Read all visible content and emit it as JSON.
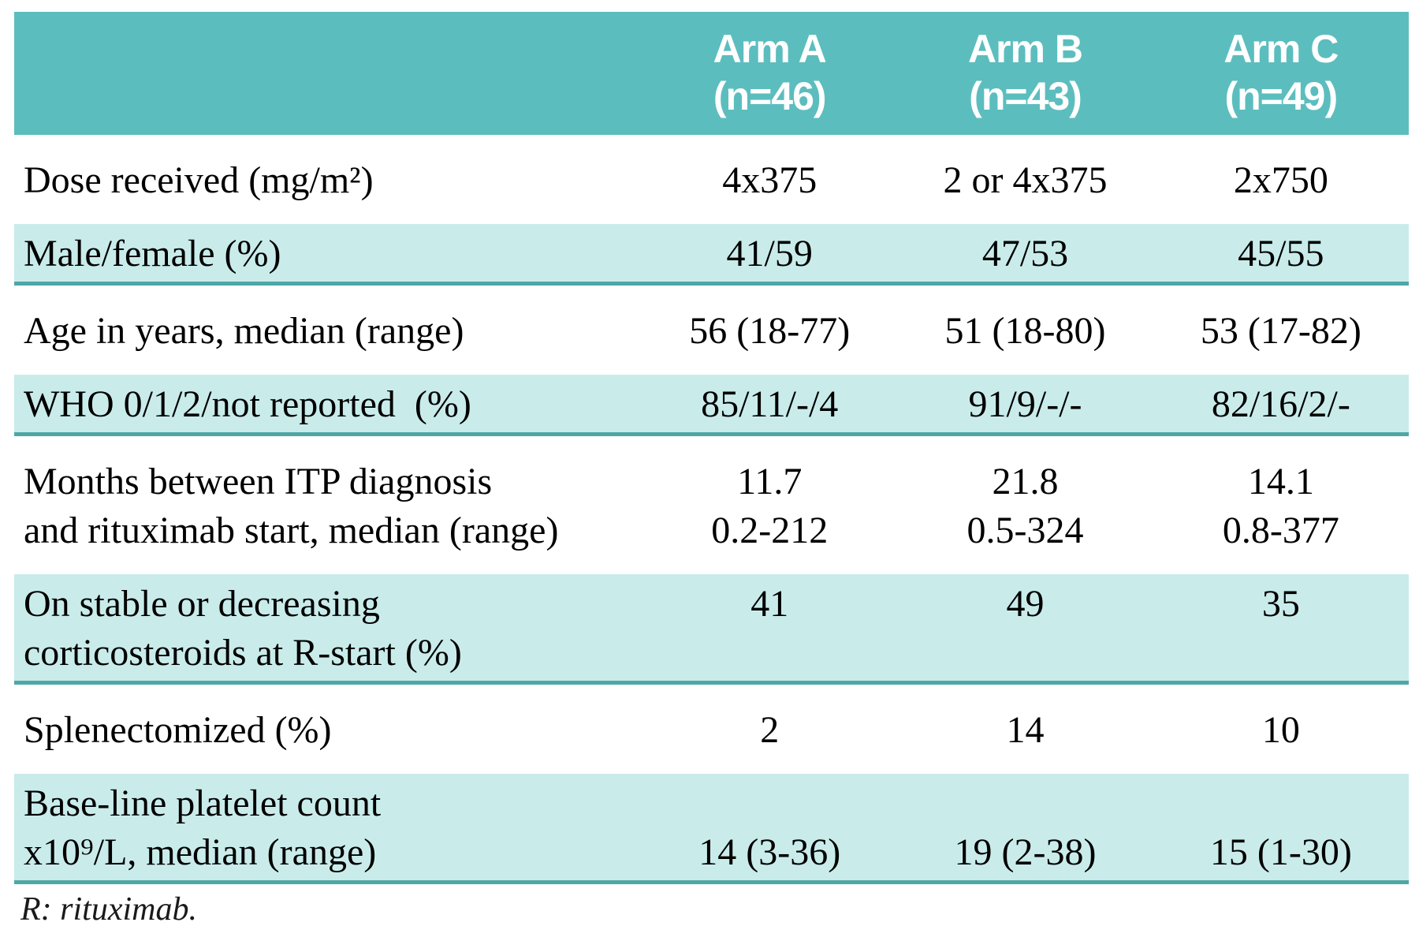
{
  "colors": {
    "header_bg": "#5cbdbe",
    "header_text": "#ffffff",
    "shaded_row_bg": "#c9eceb",
    "separator": "#4fa7a5",
    "body_text": "#000000"
  },
  "table": {
    "header": {
      "label_col": "",
      "arm_a": "Arm A\n(n=46)",
      "arm_b": "Arm B\n(n=43)",
      "arm_c": "Arm C\n(n=49)"
    },
    "rows": [
      {
        "label": "Dose received (mg/m²)",
        "arm_a": "4x375",
        "arm_b": "2 or 4x375",
        "arm_c": "2x750"
      },
      {
        "label": "Male/female (%)",
        "arm_a": "41/59",
        "arm_b": "47/53",
        "arm_c": "45/55"
      },
      {
        "label": "Age in years, median (range)",
        "arm_a": "56 (18-77)",
        "arm_b": "51 (18-80)",
        "arm_c": "53 (17-82)"
      },
      {
        "label": "WHO 0/1/2/not reported  (%)",
        "arm_a": "85/11/-/4",
        "arm_b": "91/9/-/-",
        "arm_c": "82/16/2/-"
      },
      {
        "label": "Months between ITP diagnosis\nand rituximab start, median (range)",
        "arm_a": "11.7\n0.2-212",
        "arm_b": "21.8\n0.5-324",
        "arm_c": "14.1\n0.8-377"
      },
      {
        "label": "On stable or decreasing\ncorticosteroids at R-start (%)",
        "arm_a": "41",
        "arm_b": "49",
        "arm_c": "35"
      },
      {
        "label": "Splenectomized (%)",
        "arm_a": "2",
        "arm_b": "14",
        "arm_c": "10"
      },
      {
        "label": "Base-line platelet count\nx10⁹/L, median (range)",
        "arm_a": "\n14 (3-36)",
        "arm_b": "\n19 (2-38)",
        "arm_c": "\n15 (1-30)"
      }
    ]
  },
  "footnote": "R: rituximab."
}
